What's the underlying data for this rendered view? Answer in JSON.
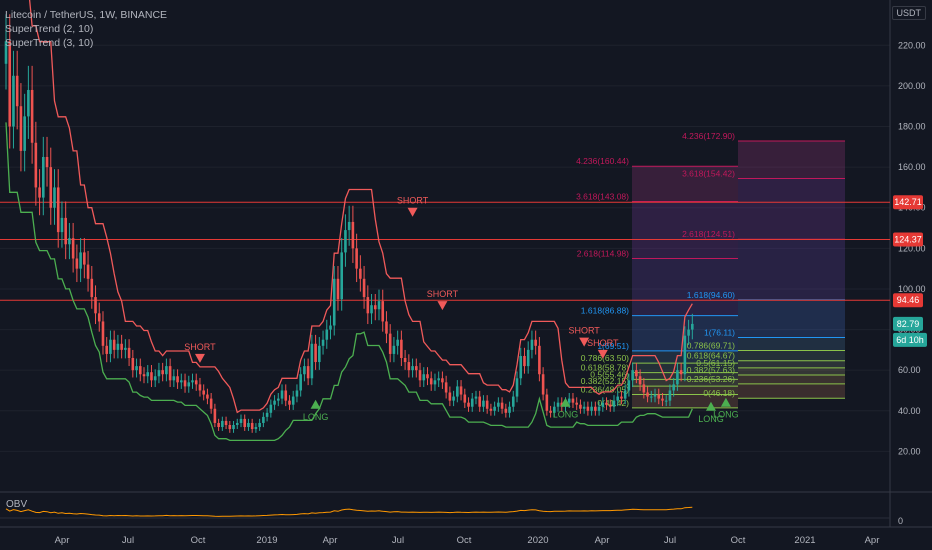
{
  "legend": {
    "title": "Litecoin / TetherUS, 1W, BINANCE",
    "st1": "SuperTrend (2, 10)",
    "st2": "SuperTrend (3, 10)"
  },
  "currency_badge": "USDT",
  "obv_label": "OBV",
  "colors": {
    "background": "#131722",
    "up": "#26a69a",
    "down": "#ef5350",
    "supertrend_up": "#4caf50",
    "supertrend_down": "#f05a5a",
    "hline": "#e53935",
    "obv": "#ff9800"
  },
  "chart_data": {
    "type": "candlestick",
    "symbol": "Litecoin / TetherUS",
    "interval": "1W",
    "exchange": "BINANCE",
    "x_tick_labels": [
      "Apr",
      "Jul",
      "Oct",
      "2019",
      "Apr",
      "Jul",
      "Oct",
      "2020",
      "Apr",
      "Jul",
      "Oct",
      "2021",
      "Apr"
    ],
    "y_tick_labels": [
      "20.00",
      "40.00",
      "60.00",
      "80.00",
      "100.00",
      "120.00",
      "140.00",
      "160.00",
      "180.00",
      "200.00",
      "220.00"
    ],
    "ylim": [
      0,
      230
    ],
    "price_levels": [
      {
        "label": "142.71",
        "value": 142.71,
        "color": "#e53935"
      },
      {
        "label": "124.37",
        "value": 124.37,
        "color": "#e53935"
      },
      {
        "label": "94.46",
        "value": 94.46,
        "color": "#e53935"
      },
      {
        "label": "82.79",
        "value": 82.79,
        "color": "#26a69a"
      }
    ],
    "countdown": "6d 10h",
    "fib_left": [
      {
        "label": "4.236(160.44)",
        "value": 160.44
      },
      {
        "label": "3.618(143.08)",
        "value": 143.08
      },
      {
        "label": "2.618(114.98)",
        "value": 114.98
      },
      {
        "label": "1.618(86.88)",
        "value": 86.88
      },
      {
        "label": "1(69.51)",
        "value": 69.51
      },
      {
        "label": "0.786(63.50)",
        "value": 63.5
      },
      {
        "label": "0.618(58.78)",
        "value": 58.78
      },
      {
        "label": "0.5(55.46)",
        "value": 55.46
      },
      {
        "label": "0.382(52.15)",
        "value": 52.15
      },
      {
        "label": "0.236(48.05)",
        "value": 48.05
      },
      {
        "label": "0(41.42)",
        "value": 41.42
      }
    ],
    "fib_right": [
      {
        "label": "4.236(172.90)",
        "value": 172.9
      },
      {
        "label": "3.618(154.42)",
        "value": 154.42
      },
      {
        "label": "2.618(124.51)",
        "value": 124.51
      },
      {
        "label": "1.618(94.60)",
        "value": 94.6
      },
      {
        "label": "1(76.11)",
        "value": 76.11
      },
      {
        "label": "0.786(69.71)",
        "value": 69.71
      },
      {
        "label": "0.618(64.67)",
        "value": 64.67
      },
      {
        "label": "0.5(61.15)",
        "value": 61.15
      },
      {
        "label": "0.382(57.63)",
        "value": 57.63
      },
      {
        "label": "0.236(53.26)",
        "value": 53.26
      },
      {
        "label": "0(46.18)",
        "value": 46.18
      }
    ],
    "signals": [
      {
        "text": "SHORT",
        "type": "short",
        "week": 52,
        "price": 68
      },
      {
        "text": "SHORT",
        "type": "short",
        "week": 109,
        "price": 140
      },
      {
        "text": "SHORT",
        "type": "short",
        "week": 117,
        "price": 94
      },
      {
        "text": "SHORT",
        "type": "short",
        "week": 155,
        "price": 76
      },
      {
        "text": "SHORT",
        "type": "short",
        "week": 160,
        "price": 70
      },
      {
        "text": "LONG",
        "type": "long",
        "week": 83,
        "price": 41
      },
      {
        "text": "LONG",
        "type": "long",
        "week": 150,
        "price": 42
      },
      {
        "text": "LONG",
        "type": "long",
        "week": 189,
        "price": 40
      },
      {
        "text": "LONG",
        "type": "long",
        "week": 193,
        "price": 42
      }
    ],
    "close": [
      222,
      180,
      205,
      190,
      168,
      185,
      198,
      172,
      150,
      145,
      165,
      160,
      140,
      150,
      128,
      135,
      122,
      125,
      115,
      110,
      118,
      112,
      105,
      96,
      88,
      84,
      72,
      68,
      75,
      70,
      73,
      70,
      71,
      66,
      60,
      62,
      58,
      57,
      59,
      55,
      57,
      60,
      58,
      62,
      55,
      57,
      54,
      55,
      52,
      54,
      55,
      53,
      50,
      48,
      46,
      41,
      34,
      32,
      35,
      33,
      31,
      33,
      34,
      36,
      32,
      34,
      31,
      32,
      34,
      37,
      39,
      43,
      45,
      46,
      50,
      45,
      43,
      47,
      50,
      58,
      62,
      56,
      73,
      64,
      72,
      75,
      80,
      82,
      105,
      95,
      118,
      129,
      133,
      120,
      110,
      105,
      96,
      88,
      92,
      90,
      94,
      84,
      78,
      68,
      72,
      75,
      66,
      64,
      60,
      62,
      60,
      55,
      58,
      56,
      53,
      55,
      56,
      54,
      49,
      45,
      47,
      52,
      48,
      44,
      42,
      46,
      47,
      42,
      45,
      41,
      40,
      42,
      44,
      41,
      39,
      42,
      47,
      56,
      67,
      62,
      70,
      75,
      72,
      58,
      48,
      40,
      39,
      42,
      44,
      42,
      44,
      46,
      44,
      43,
      41,
      42,
      40,
      42,
      40,
      42,
      44,
      43,
      42,
      45,
      47,
      46,
      50,
      55,
      60,
      57,
      53,
      49,
      47,
      47,
      48,
      46,
      45,
      45,
      50,
      53,
      60,
      58,
      77,
      80,
      82.79
    ],
    "obv": [
      1,
      1,
      1,
      1,
      1,
      1,
      1,
      1,
      1,
      1,
      1,
      1,
      1,
      1,
      1,
      1,
      1,
      1,
      1,
      1,
      1,
      1,
      1,
      1,
      1,
      1,
      1,
      1,
      1,
      1,
      1,
      1,
      1,
      1,
      1,
      1,
      1,
      1,
      1,
      1,
      1,
      1,
      1,
      1,
      1,
      1,
      1,
      1,
      1,
      1,
      1,
      1,
      1,
      1,
      1,
      1,
      1,
      1,
      1,
      1,
      1,
      1,
      1,
      1,
      1,
      1,
      1,
      1,
      1,
      1,
      1,
      1,
      1,
      1,
      1,
      1,
      1,
      1,
      1,
      1,
      1,
      1,
      1,
      1,
      1,
      1,
      1,
      1,
      1,
      1,
      1,
      1,
      1,
      1,
      1,
      1,
      1,
      1,
      1,
      1,
      1,
      1,
      1,
      1,
      1,
      1,
      1,
      1,
      1,
      1,
      1,
      1,
      1,
      1,
      1,
      1,
      1,
      1,
      1,
      1,
      1,
      1,
      1,
      1,
      1,
      1,
      1,
      1,
      1,
      1,
      1,
      1,
      1,
      1,
      1,
      1,
      1,
      1,
      1,
      1,
      1,
      1,
      1,
      1,
      1,
      1,
      1,
      1,
      1,
      1,
      1,
      1,
      1,
      1,
      1,
      1,
      1,
      1,
      1,
      1,
      1,
      1,
      1,
      1,
      1,
      1,
      1,
      1,
      1,
      1,
      1,
      1,
      1,
      1,
      1,
      1,
      1,
      1,
      1,
      1,
      1,
      1,
      1,
      1,
      1,
      1,
      1,
      1,
      1,
      1
    ]
  }
}
